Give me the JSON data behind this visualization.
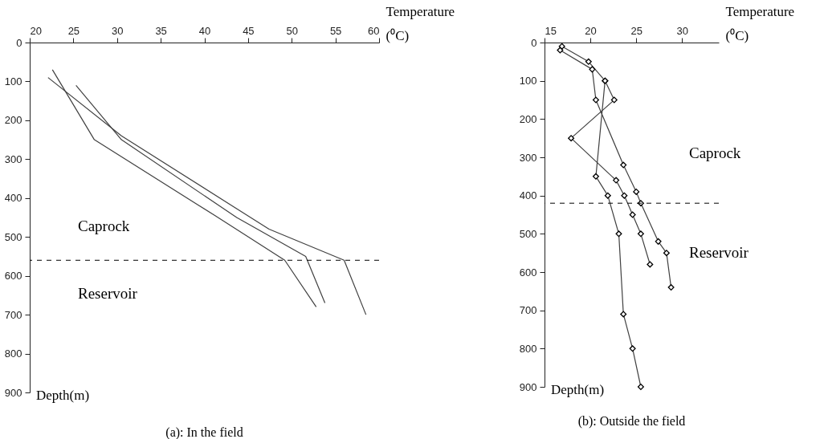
{
  "chart_data": [
    {
      "type": "line",
      "title": "(a): In the field",
      "xlabel": "Temperature (⁰C)",
      "xlim": [
        20,
        60
      ],
      "xticks": [
        20,
        25,
        30,
        35,
        40,
        45,
        50,
        55,
        60
      ],
      "ylim": [
        900,
        0
      ],
      "yticks": [
        0,
        100,
        200,
        300,
        400,
        500,
        600,
        700,
        800,
        900
      ],
      "series": [
        {
          "color": "#404040",
          "x": [
            22.6,
            27.4,
            41.2,
            49.2,
            52.8
          ],
          "values": [
            70,
            250,
            445,
            560,
            680
          ]
        },
        {
          "color": "#404040",
          "x": [
            25.3,
            30.5,
            43.7,
            51.6,
            53.8
          ],
          "values": [
            110,
            250,
            450,
            550,
            670
          ]
        },
        {
          "color": "#404040",
          "x": [
            22.1,
            30.5,
            47.4,
            56,
            58.5
          ],
          "values": [
            90,
            240,
            480,
            560,
            700
          ]
        }
      ],
      "marker": "none",
      "ref_lines": [
        {
          "axis": "y",
          "value": 560,
          "line_style": "dashed",
          "color": "#000000"
        }
      ],
      "annotations": [
        "Caprock",
        "Reservoir",
        "Depth(m)"
      ]
    },
    {
      "type": "line",
      "title": "(b): Outside the field",
      "xlabel": "Temperature (⁰C)",
      "xlim": [
        15,
        34
      ],
      "xticks": [
        15,
        20,
        25,
        30
      ],
      "ylim": [
        900,
        0
      ],
      "yticks": [
        0,
        100,
        200,
        300,
        400,
        500,
        600,
        700,
        800,
        900
      ],
      "series": [
        {
          "color": "#404040",
          "x": [
            16.9,
            19.8,
            21.6,
            22.6,
            17.9,
            22.8,
            23.7,
            24.6,
            25.5,
            26.5
          ],
          "values": [
            10,
            50,
            100,
            150,
            250,
            360,
            400,
            450,
            500,
            580
          ]
        },
        {
          "color": "#404040",
          "x": [
            16.7,
            20.2,
            20.6,
            23.6,
            25.0,
            25.5,
            27.4,
            28.3,
            28.8
          ],
          "values": [
            20,
            70,
            150,
            320,
            390,
            420,
            520,
            550,
            640
          ]
        },
        {
          "color": "#404040",
          "x": [
            21.6,
            20.6,
            21.9,
            23.1,
            23.6,
            24.6,
            25.5
          ],
          "values": [
            100,
            350,
            400,
            500,
            710,
            800,
            900
          ]
        }
      ],
      "marker": "diamond",
      "ref_lines": [
        {
          "axis": "y",
          "value": 420,
          "line_style": "dashed",
          "color": "#000000"
        }
      ],
      "annotations": [
        "Caprock",
        "Reservoir",
        "Depth(m)"
      ]
    }
  ]
}
